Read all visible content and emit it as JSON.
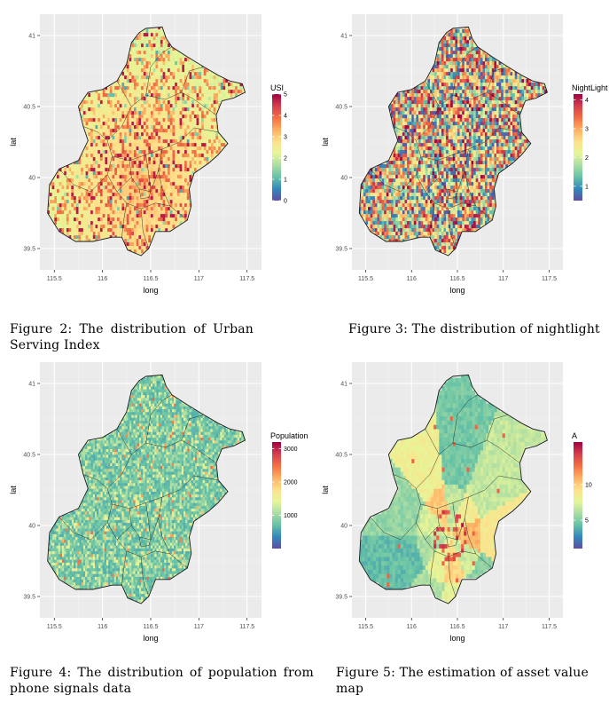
{
  "colors": {
    "panel_bg": "#ebebeb",
    "grid": "#ffffff",
    "boundary": "#1a1a1a",
    "spectral": [
      "#5e4fa2",
      "#3288bd",
      "#66c2a5",
      "#abdda4",
      "#e6f598",
      "#fee08b",
      "#fdae61",
      "#f46d43",
      "#d53e4f",
      "#9e0142"
    ]
  },
  "captions": [
    "Figure 2: The distribution of Urban Serving Index",
    "Figure 3: The distribution of nightlight",
    "Figure 4: The distribution of population from phone signals data",
    "Figure 5: The estimation of asset value map"
  ],
  "chart_data": [
    {
      "type": "heatmap",
      "title": "",
      "xlabel": "long",
      "ylabel": "lat",
      "xlim": [
        115.35,
        117.65
      ],
      "ylim": [
        39.35,
        41.15
      ],
      "x_ticks": [
        "115.5",
        "116",
        "116.5",
        "117",
        "117.5"
      ],
      "y_ticks": [
        "39.5",
        "40",
        "40.5",
        "41"
      ],
      "grid": true,
      "legend": {
        "title": "USI",
        "placement": "right",
        "ticks": [
          "5",
          "4",
          "3",
          "2",
          "1",
          "0"
        ],
        "range": [
          0,
          5
        ]
      },
      "fill_pattern": "usi"
    },
    {
      "type": "heatmap",
      "title": "",
      "xlabel": "long",
      "ylabel": "lat",
      "xlim": [
        115.35,
        117.65
      ],
      "ylim": [
        39.35,
        41.15
      ],
      "x_ticks": [
        "115.5",
        "116",
        "116.5",
        "117",
        "117.5"
      ],
      "y_ticks": [
        "39.5",
        "40",
        "40.5",
        "41"
      ],
      "grid": true,
      "legend": {
        "title": "NightLight",
        "placement": "right",
        "ticks": [
          "4",
          "3",
          "2",
          "1"
        ],
        "range": [
          0.5,
          4.2
        ]
      },
      "fill_pattern": "night"
    },
    {
      "type": "heatmap",
      "title": "",
      "xlabel": "long",
      "ylabel": "lat",
      "xlim": [
        115.35,
        117.65
      ],
      "ylim": [
        39.35,
        41.15
      ],
      "x_ticks": [
        "115.5",
        "116",
        "116.5",
        "117",
        "117.5"
      ],
      "y_ticks": [
        "39.5",
        "40",
        "40.5",
        "41"
      ],
      "grid": true,
      "legend": {
        "title": "Population",
        "placement": "right",
        "ticks": [
          "3000",
          "2000",
          "1000"
        ],
        "range": [
          0,
          3200
        ]
      },
      "fill_pattern": "pop"
    },
    {
      "type": "heatmap",
      "title": "",
      "xlabel": "long",
      "ylabel": "lat",
      "xlim": [
        115.35,
        117.65
      ],
      "ylim": [
        39.35,
        41.15
      ],
      "x_ticks": [
        "115.5",
        "116",
        "116.5",
        "117",
        "117.5"
      ],
      "y_ticks": [
        "39.5",
        "40",
        "40.5",
        "41"
      ],
      "grid": true,
      "legend": {
        "title": "A",
        "placement": "right",
        "ticks": [
          "10",
          "5"
        ],
        "range": [
          1,
          16
        ]
      },
      "fill_pattern": "asset"
    }
  ]
}
